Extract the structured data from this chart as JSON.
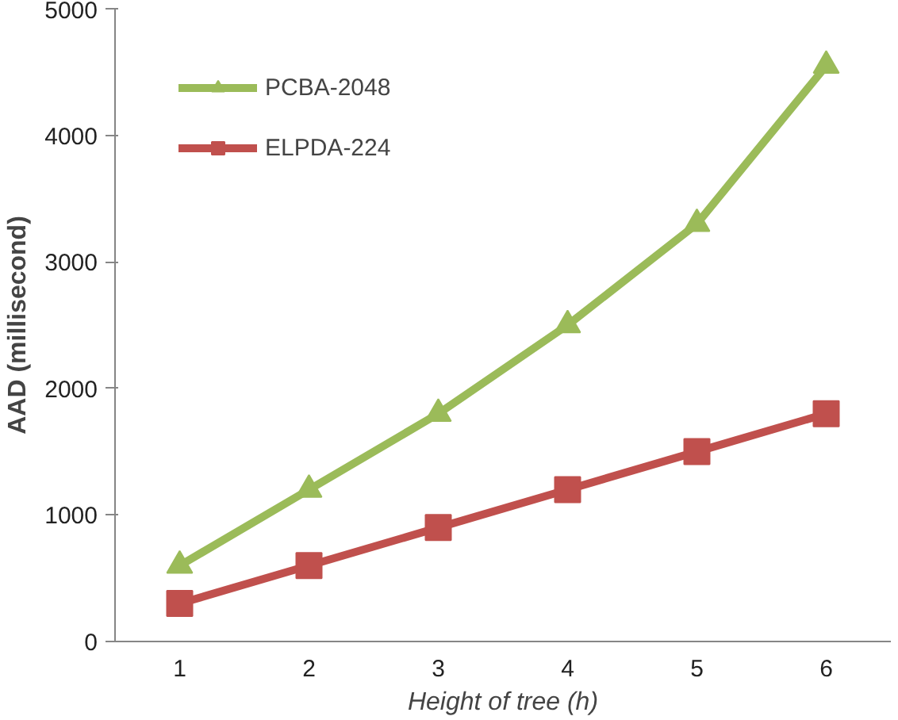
{
  "chart_data": {
    "type": "line",
    "xlabel": "Height of tree (h)",
    "ylabel": "AAD (millisecond)",
    "categories": [
      "1",
      "2",
      "3",
      "4",
      "5",
      "6"
    ],
    "ylim": [
      0,
      5000
    ],
    "yticks": [
      0,
      1000,
      2000,
      3000,
      4000,
      5000
    ],
    "grid": false,
    "legend": "top left",
    "series": [
      {
        "name": "PCBA-2048",
        "color": "#9bbb59",
        "marker": "triangle",
        "values": [
          600,
          1200,
          1800,
          2500,
          3300,
          4550
        ]
      },
      {
        "name": "ELPDA-224",
        "color": "#c0504d",
        "marker": "square",
        "values": [
          300,
          600,
          900,
          1200,
          1500,
          1800
        ]
      }
    ]
  }
}
